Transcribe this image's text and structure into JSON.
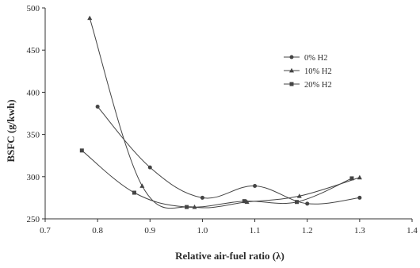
{
  "chart_data": {
    "type": "line",
    "title": "",
    "xlabel": "Relative air-fuel ratio (λ)",
    "ylabel": "BSFC (g/kwh)",
    "xlim": [
      0.7,
      1.4
    ],
    "ylim": [
      250,
      500
    ],
    "x_ticks": [
      0.7,
      0.8,
      0.9,
      1.0,
      1.1,
      1.2,
      1.3,
      1.4
    ],
    "x_tick_labels": [
      "0.7",
      "0.8",
      "0.9",
      "1.0",
      "1.1",
      "1.2",
      "1.3",
      "1.4"
    ],
    "y_ticks": [
      250,
      300,
      350,
      400,
      450,
      500
    ],
    "y_tick_labels": [
      "250",
      "300",
      "350",
      "400",
      "450",
      "500"
    ],
    "grid": false,
    "legend_position": "top-right",
    "line_color": "#444444",
    "series": [
      {
        "name": "0%   H2",
        "marker": "circle",
        "x": [
          0.8,
          0.9,
          1.0,
          1.1,
          1.2,
          1.3
        ],
        "y": [
          383,
          311,
          275,
          289,
          268,
          275
        ]
      },
      {
        "name": "10% H2",
        "marker": "triangle",
        "x": [
          0.785,
          0.885,
          0.985,
          1.085,
          1.185,
          1.3
        ],
        "y": [
          488,
          289,
          264,
          270,
          277,
          299
        ]
      },
      {
        "name": "20% H2",
        "marker": "square",
        "x": [
          0.77,
          0.87,
          0.97,
          1.08,
          1.18,
          1.285
        ],
        "y": [
          331,
          281,
          264,
          271,
          270,
          298
        ]
      }
    ]
  }
}
